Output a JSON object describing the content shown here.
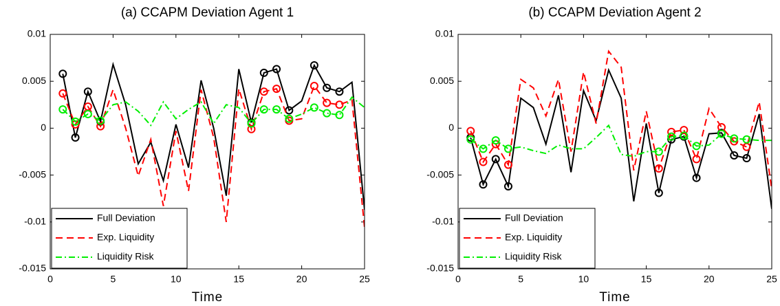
{
  "chart_data": [
    {
      "type": "line",
      "title": "(a) CCAPM Deviation Agent 1",
      "x_label": "Time",
      "x": [
        1,
        2,
        3,
        4,
        5,
        6,
        7,
        8,
        9,
        10,
        11,
        12,
        13,
        14,
        15,
        16,
        17,
        18,
        19,
        20,
        21,
        22,
        23,
        24,
        25
      ],
      "xlim": [
        0,
        25
      ],
      "xticks": [
        0,
        5,
        10,
        15,
        20,
        25
      ],
      "ylim": [
        -0.015,
        0.01
      ],
      "yticks": [
        -0.015,
        -0.01,
        -0.005,
        0,
        0.005,
        0.01
      ],
      "legend": "lower left",
      "markers_at": [
        1,
        2,
        3,
        4,
        16,
        17,
        18,
        19,
        21,
        22,
        23
      ],
      "series": [
        {
          "name": "Full Deviation",
          "color": "#000000",
          "line_style": "solid",
          "values": [
            0.0058,
            -0.001,
            0.0039,
            0.0007,
            0.0068,
            0.0025,
            -0.0038,
            -0.0015,
            -0.0056,
            0.0004,
            -0.0042,
            0.0051,
            0.0,
            -0.0072,
            0.0063,
            0.0006,
            0.0059,
            0.0063,
            0.0019,
            0.0029,
            0.0067,
            0.0043,
            0.0039,
            0.0049,
            -0.0087
          ]
        },
        {
          "name": "Exp. Liquidity",
          "color": "#ff0000",
          "line_style": "dashed",
          "values": [
            0.0037,
            0.0004,
            0.0023,
            0.0002,
            0.0041,
            0.0,
            -0.0051,
            -0.0012,
            -0.0083,
            -0.0003,
            -0.0067,
            0.0041,
            -0.001,
            -0.01,
            0.0042,
            -0.0001,
            0.0039,
            0.0042,
            0.0008,
            0.001,
            0.0045,
            0.0027,
            0.0025,
            0.003,
            -0.0106
          ]
        },
        {
          "name": "Liquidity Risk",
          "color": "#00ee00",
          "line_style": "dashdot",
          "values": [
            0.002,
            0.0007,
            0.0015,
            0.0008,
            0.0025,
            0.0028,
            0.0018,
            0.0003,
            0.0028,
            0.001,
            0.002,
            0.0028,
            0.0005,
            0.0025,
            0.0022,
            0.0005,
            0.002,
            0.002,
            0.001,
            0.0015,
            0.0022,
            0.0016,
            0.0014,
            0.0033,
            0.0022
          ]
        }
      ]
    },
    {
      "type": "line",
      "title": "(b) CCAPM Deviation Agent 2",
      "x_label": "Time",
      "x": [
        1,
        2,
        3,
        4,
        5,
        6,
        7,
        8,
        9,
        10,
        11,
        12,
        13,
        14,
        15,
        16,
        17,
        18,
        19,
        20,
        21,
        22,
        23,
        24,
        25
      ],
      "xlim": [
        0,
        25
      ],
      "xticks": [
        0,
        5,
        10,
        15,
        20,
        25
      ],
      "ylim": [
        -0.015,
        0.01
      ],
      "yticks": [
        -0.015,
        -0.01,
        -0.005,
        0,
        0.005,
        0.01
      ],
      "legend": "lower left",
      "markers_at": [
        1,
        2,
        3,
        4,
        16,
        17,
        18,
        19,
        21,
        22,
        23
      ],
      "series": [
        {
          "name": "Full Deviation",
          "color": "#000000",
          "line_style": "solid",
          "values": [
            -0.001,
            -0.006,
            -0.0033,
            -0.0062,
            0.0032,
            0.0022,
            -0.0017,
            0.0035,
            -0.0047,
            0.004,
            0.0008,
            0.0062,
            0.0032,
            -0.0078,
            0.0005,
            -0.0069,
            -0.0012,
            -0.0009,
            -0.0053,
            -0.0006,
            -0.0005,
            -0.0029,
            -0.0032,
            0.0015,
            -0.0086
          ]
        },
        {
          "name": "Exp. Liquidity",
          "color": "#ff0000",
          "line_style": "dashed",
          "values": [
            -0.0003,
            -0.0036,
            -0.0017,
            -0.0039,
            0.0052,
            0.0043,
            0.0013,
            0.0052,
            -0.0025,
            0.006,
            0.0005,
            0.0082,
            0.0065,
            -0.0045,
            0.0018,
            -0.0043,
            -0.0004,
            -0.0002,
            -0.0033,
            0.0021,
            0.0001,
            -0.0014,
            -0.002,
            0.0028,
            -0.0065
          ]
        },
        {
          "name": "Liquidity Risk",
          "color": "#00ee00",
          "line_style": "dashdot",
          "values": [
            -0.0012,
            -0.0022,
            -0.0013,
            -0.0022,
            -0.002,
            -0.0024,
            -0.0027,
            -0.0018,
            -0.0022,
            -0.0022,
            -0.001,
            0.0003,
            -0.0028,
            -0.003,
            -0.0025,
            -0.0025,
            -0.0009,
            -0.0008,
            -0.0019,
            -0.0018,
            -0.0006,
            -0.0011,
            -0.0012,
            -0.0013,
            -0.0013
          ]
        }
      ]
    }
  ]
}
